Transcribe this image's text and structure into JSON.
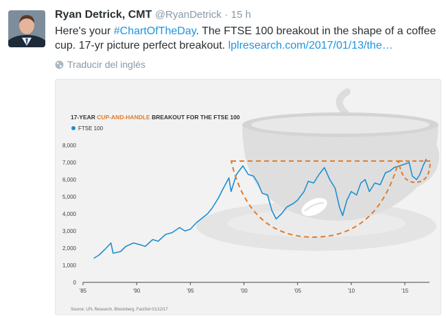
{
  "tweet": {
    "author_name": "Ryan Detrick, CMT",
    "handle": "@RyanDetrick",
    "separator": "·",
    "time": "15 h",
    "text_before": "Here's your ",
    "hashtag": "#ChartOfTheDay",
    "text_middle": ". The FTSE 100 breakout in the shape of a coffee cup. 17-yr picture perfect breakout. ",
    "link": "lplresearch.com/2017/01/13/the…",
    "translate_label": "Traducir del inglés"
  },
  "icons": {
    "translate": "globe-icon",
    "avatar": "avatar-photo"
  },
  "colors": {
    "accent_link": "#1b95e0",
    "series": "#1a8fd0",
    "highlight": "#e07b2a"
  },
  "chart_data": {
    "type": "line",
    "title_prefix": "17-YEAR ",
    "title_highlight": "CUP-AND-HANDLE",
    "title_suffix": " BREAKOUT FOR THE FTSE 100",
    "legend": [
      {
        "name": "FTSE 100",
        "color": "#1a8fd0"
      }
    ],
    "legend_position": "top-left",
    "x_ticks": [
      "'85",
      "'90",
      "'95",
      "'00",
      "'05",
      "'10",
      "'15"
    ],
    "x_tick_years": [
      1985,
      1990,
      1995,
      2000,
      2005,
      2010,
      2015
    ],
    "xlim": [
      1985,
      2017.3
    ],
    "y_ticks": [
      "0",
      "1,000",
      "2,000",
      "3,000",
      "4,000",
      "5,000",
      "6,000",
      "7,000",
      "8,000"
    ],
    "ylim": [
      0,
      8000
    ],
    "grid": false,
    "source": "Source: LPL Research, Bloomberg, FactSet   01/12/17",
    "series": [
      {
        "name": "FTSE 100",
        "x": [
          1986.0,
          1986.5,
          1987.0,
          1987.6,
          1987.8,
          1988.5,
          1989.0,
          1989.7,
          1990.3,
          1990.8,
          1991.5,
          1992.0,
          1992.7,
          1993.3,
          1994.0,
          1994.5,
          1995.0,
          1995.6,
          1996.0,
          1996.6,
          1997.0,
          1997.6,
          1998.0,
          1998.6,
          1998.8,
          1999.3,
          1999.9,
          2000.4,
          2000.9,
          2001.3,
          2001.7,
          2002.2,
          2002.6,
          2003.0,
          2003.5,
          2004.0,
          2004.6,
          2005.0,
          2005.6,
          2006.0,
          2006.5,
          2007.0,
          2007.5,
          2008.0,
          2008.5,
          2008.9,
          2009.2,
          2009.6,
          2010.0,
          2010.5,
          2010.9,
          2011.3,
          2011.7,
          2012.2,
          2012.7,
          2013.2,
          2013.6,
          2014.0,
          2014.5,
          2015.0,
          2015.4,
          2015.7,
          2016.1,
          2016.4,
          2016.7,
          2017.0
        ],
        "y": [
          1400,
          1600,
          1900,
          2300,
          1700,
          1800,
          2100,
          2300,
          2200,
          2100,
          2500,
          2400,
          2800,
          2900,
          3200,
          3000,
          3100,
          3500,
          3700,
          4000,
          4300,
          4900,
          5400,
          6100,
          5300,
          6300,
          6800,
          6300,
          6200,
          5800,
          5200,
          5100,
          4200,
          3700,
          4000,
          4400,
          4600,
          4800,
          5300,
          5900,
          5800,
          6300,
          6700,
          6000,
          5500,
          4400,
          3900,
          4800,
          5300,
          5100,
          5800,
          6000,
          5300,
          5800,
          5700,
          6400,
          6500,
          6700,
          6800,
          6900,
          7000,
          6200,
          6000,
          6300,
          6800,
          7200
        ]
      }
    ],
    "annotations": [
      "cup-and-handle outline (orange dashed)",
      "coffee cup illustration"
    ]
  }
}
